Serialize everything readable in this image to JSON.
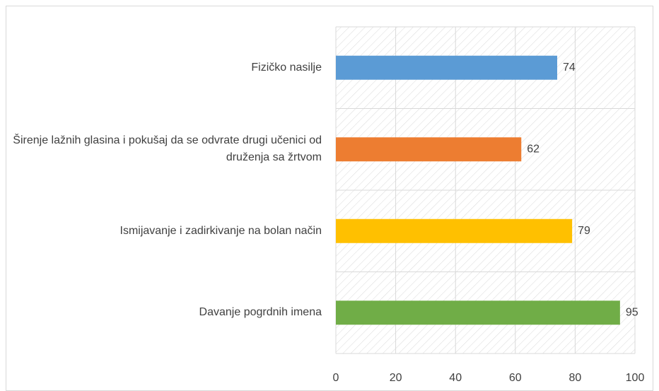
{
  "chart_data": {
    "type": "barh",
    "categories": [
      "Fizičko nasilje",
      "Širenje lažnih glasina i pokušaj da se odvrate drugi učenici od druženja sa žrtvom",
      "Ismijavanje i zadirkivanje na bolan način",
      "Davanje pogrdnih imena"
    ],
    "values": [
      74,
      62,
      79,
      95
    ],
    "colors": [
      "#5b9bd5",
      "#ed7d31",
      "#ffc000",
      "#70ad47"
    ],
    "xlim": [
      0,
      100
    ],
    "xticks": [
      0,
      20,
      40,
      60,
      80,
      100
    ],
    "grid": true
  }
}
